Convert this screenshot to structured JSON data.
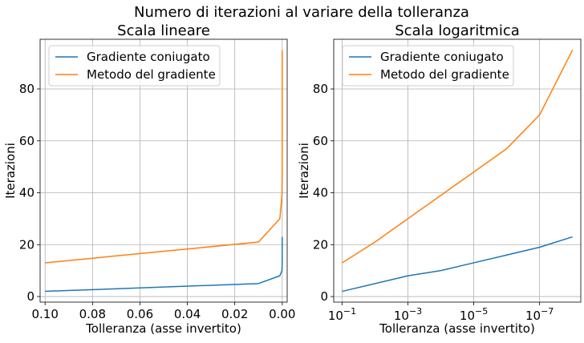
{
  "suptitle": "Numero di iterazioni al variare della tolleranza",
  "chart_data": [
    {
      "type": "line",
      "title": "Scala lineare",
      "xlabel": "Tolleranza (asse invertito)",
      "ylabel": "Iterazioni",
      "x_scale": "linear",
      "x_inverted": true,
      "xlim": [
        0.1021,
        -0.0021
      ],
      "ylim": [
        -2.15,
        99.15
      ],
      "grid": true,
      "legend": "upper-left",
      "x_ticks": [
        0.1,
        0.08,
        0.06,
        0.04,
        0.02,
        0.0
      ],
      "x_tick_labels": [
        "0.10",
        "0.08",
        "0.06",
        "0.04",
        "0.02",
        "0.00"
      ],
      "y_ticks": [
        0,
        20,
        40,
        60,
        80
      ],
      "y_tick_labels": [
        "0",
        "20",
        "40",
        "60",
        "80"
      ],
      "x": [
        0.1,
        0.01,
        0.001,
        0.0001,
        1e-05,
        1e-06,
        1e-07,
        1e-08
      ],
      "series": [
        {
          "name": "Gradiente coniugato",
          "color": "#1f77b4",
          "values": [
            2,
            5,
            8,
            10,
            13,
            16,
            19,
            23
          ]
        },
        {
          "name": "Metodo del gradiente",
          "color": "#ff7f0e",
          "values": [
            13,
            21,
            30,
            39,
            48,
            57,
            70,
            95
          ]
        }
      ]
    },
    {
      "type": "line",
      "title": "Scala logaritmica",
      "xlabel": "Tolleranza (asse invertito)",
      "ylabel": "Iterazioni",
      "x_scale": "log",
      "x_inverted": true,
      "xlim": [
        0.18,
        5.6e-09
      ],
      "ylim": [
        -2.15,
        99.15
      ],
      "grid": true,
      "legend": "upper-left",
      "x_ticks": [
        0.1,
        0.001,
        1e-05,
        1e-07
      ],
      "x_tick_labels": [
        {
          "base": "10",
          "exp": "−1"
        },
        {
          "base": "10",
          "exp": "−3"
        },
        {
          "base": "10",
          "exp": "−5"
        },
        {
          "base": "10",
          "exp": "−7"
        }
      ],
      "y_ticks": [
        0,
        20,
        40,
        60,
        80
      ],
      "y_tick_labels": [
        "0",
        "20",
        "40",
        "60",
        "80"
      ],
      "x": [
        0.1,
        0.01,
        0.001,
        0.0001,
        1e-05,
        1e-06,
        1e-07,
        1e-08
      ],
      "series": [
        {
          "name": "Gradiente coniugato",
          "color": "#1f77b4",
          "values": [
            2,
            5,
            8,
            10,
            13,
            16,
            19,
            23
          ]
        },
        {
          "name": "Metodo del gradiente",
          "color": "#ff7f0e",
          "values": [
            13,
            21,
            30,
            39,
            48,
            57,
            70,
            95
          ]
        }
      ]
    }
  ]
}
